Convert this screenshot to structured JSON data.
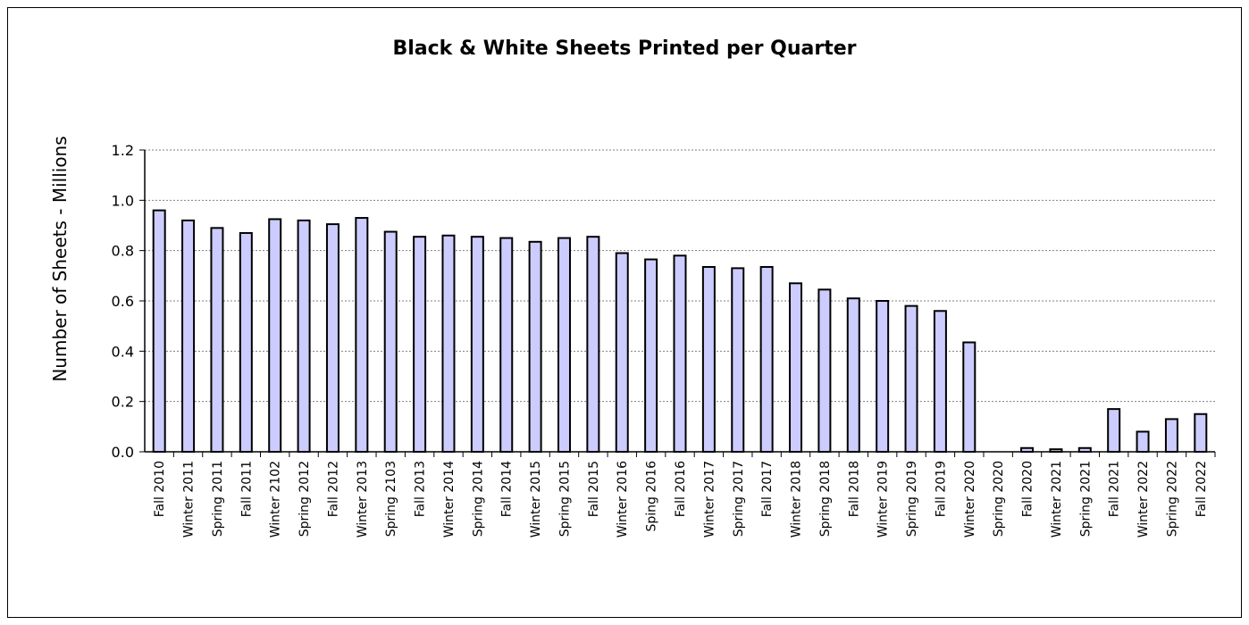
{
  "chart_data": {
    "type": "bar",
    "title": "Black & White Sheets Printed per Quarter",
    "xlabel": "",
    "ylabel": "Number of Sheets - Millions",
    "ylim": [
      0,
      1.2
    ],
    "yticks": [
      "0.0",
      "0.2",
      "0.4",
      "0.6",
      "0.8",
      "1.0",
      "1.2"
    ],
    "grid": true,
    "bar_color": "#ccccff",
    "categories": [
      "Fall 2010",
      "Winter 2011",
      "Spring 2011",
      "Fall 2011",
      "Winter 2102",
      "Spring 2012",
      "Fall 2012",
      "Winter 2013",
      "Spring 2103",
      "Fall 2013",
      "Winter 2014",
      "Spring 2014",
      "Fall 2014",
      "Winter 2015",
      "Spring 2015",
      "Fall 2015",
      "Winter 2016",
      "Sping 2016",
      "Fall 2016",
      "Winter 2017",
      "Spring 2017",
      "Fall 2017",
      "Winter 2018",
      "Spring 2018",
      "Fall 2018",
      "Winter 2019",
      "Spring 2019",
      "Fall 2019",
      "Winter 2020",
      "Spring 2020",
      "Fall 2020",
      "Winter 2021",
      "Spring 2021",
      "Fall 2021",
      "Winter 2022",
      "Spring 2022",
      "Fall 2022"
    ],
    "values": [
      0.96,
      0.92,
      0.89,
      0.87,
      0.925,
      0.92,
      0.905,
      0.93,
      0.875,
      0.855,
      0.86,
      0.855,
      0.85,
      0.835,
      0.85,
      0.855,
      0.79,
      0.765,
      0.78,
      0.735,
      0.73,
      0.735,
      0.67,
      0.645,
      0.61,
      0.6,
      0.58,
      0.56,
      0.435,
      0.0,
      0.015,
      0.01,
      0.015,
      0.17,
      0.08,
      0.13,
      0.15
    ]
  }
}
